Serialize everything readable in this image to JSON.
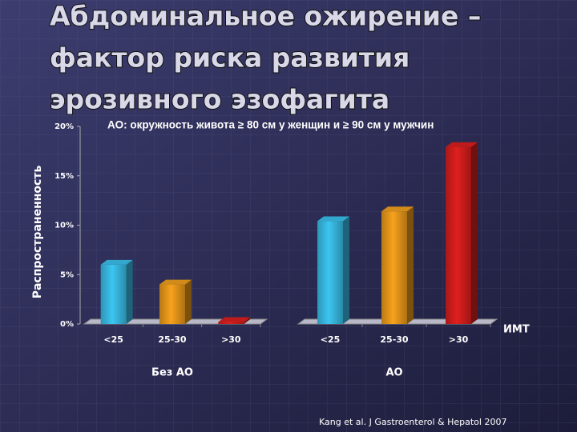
{
  "chart_data": {
    "type": "bar",
    "title": [
      "Абдоминальное ожирение –",
      "фактор риска развития",
      "эрозивного эзофагита"
    ],
    "subtitle": "АО: окружность живота ≥ 80 см у женщин и ≥ 90 см у мужчин",
    "ylabel": "Распространенность",
    "xlabel": "ИМТ",
    "source": "Kang et al. J Gastroenterol & Hepatol 2007",
    "ylim": [
      0,
      20
    ],
    "yticks": [
      {
        "value": 0,
        "label": "0%"
      },
      {
        "value": 5,
        "label": "5%"
      },
      {
        "value": 10,
        "label": "10%"
      },
      {
        "value": 15,
        "label": "15%"
      },
      {
        "value": 20,
        "label": "20%"
      }
    ],
    "colors": [
      "#3cc6f2",
      "#f7a21c",
      "#e0201e"
    ],
    "groups": [
      {
        "name": "Без АО",
        "categories": [
          "<25",
          "25-30",
          ">30"
        ],
        "values": [
          6.0,
          4.0,
          0.2
        ]
      },
      {
        "name": "АО",
        "categories": [
          "<25",
          "25-30",
          ">30"
        ],
        "values": [
          10.4,
          11.4,
          17.9
        ]
      }
    ]
  }
}
